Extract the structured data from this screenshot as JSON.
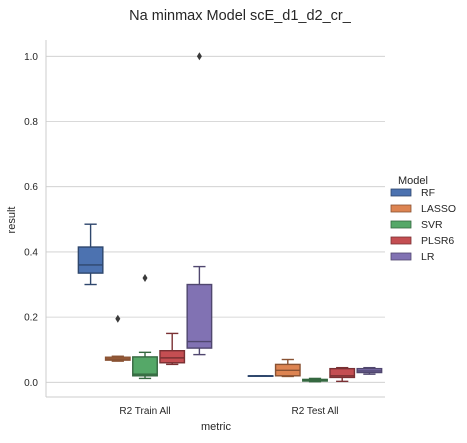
{
  "chart_data": {
    "type": "box",
    "title": "Na minmax Model scE_d1_d2_cr_",
    "xlabel": "metric",
    "ylabel": "result",
    "categories": [
      "R2 Train All",
      "R2 Test All"
    ],
    "ylim": [
      -0.045,
      1.05
    ],
    "yticks": [
      "0.0",
      "0.2",
      "0.4",
      "0.6",
      "0.8",
      "1.0"
    ],
    "grid": "horizontal",
    "legend_title": "Model",
    "legend_position": "right",
    "series": [
      {
        "name": "RF",
        "color": "#4c72b0",
        "boxes": [
          {
            "whisker_low": 0.3,
            "q1": 0.335,
            "median": 0.36,
            "q3": 0.415,
            "whisker_high": 0.485,
            "outliers": []
          },
          {
            "whisker_low": 0.02,
            "q1": 0.02,
            "median": 0.02,
            "q3": 0.02,
            "whisker_high": 0.02,
            "outliers": []
          }
        ]
      },
      {
        "name": "LASSO",
        "color": "#dd8452",
        "boxes": [
          {
            "whisker_low": 0.065,
            "q1": 0.068,
            "median": 0.072,
            "q3": 0.077,
            "whisker_high": 0.08,
            "outliers": [
              0.195
            ]
          },
          {
            "whisker_low": 0.018,
            "q1": 0.02,
            "median": 0.037,
            "q3": 0.055,
            "whisker_high": 0.07,
            "outliers": []
          }
        ]
      },
      {
        "name": "SVR",
        "color": "#55a868",
        "boxes": [
          {
            "whisker_low": 0.012,
            "q1": 0.02,
            "median": 0.025,
            "q3": 0.078,
            "whisker_high": 0.092,
            "outliers": [
              0.32
            ]
          },
          {
            "whisker_low": 0.002,
            "q1": 0.004,
            "median": 0.006,
            "q3": 0.009,
            "whisker_high": 0.012,
            "outliers": []
          }
        ]
      },
      {
        "name": "PLSR6",
        "color": "#c44e52",
        "boxes": [
          {
            "whisker_low": 0.055,
            "q1": 0.06,
            "median": 0.075,
            "q3": 0.097,
            "whisker_high": 0.15,
            "outliers": []
          },
          {
            "whisker_low": 0.003,
            "q1": 0.015,
            "median": 0.02,
            "q3": 0.042,
            "whisker_high": 0.045,
            "outliers": []
          }
        ]
      },
      {
        "name": "LR",
        "color": "#8172b3",
        "boxes": [
          {
            "whisker_low": 0.085,
            "q1": 0.105,
            "median": 0.125,
            "q3": 0.3,
            "whisker_high": 0.355,
            "outliers": [
              1.0
            ]
          },
          {
            "whisker_low": 0.025,
            "q1": 0.03,
            "median": 0.035,
            "q3": 0.042,
            "whisker_high": 0.045,
            "outliers": []
          }
        ]
      }
    ]
  }
}
